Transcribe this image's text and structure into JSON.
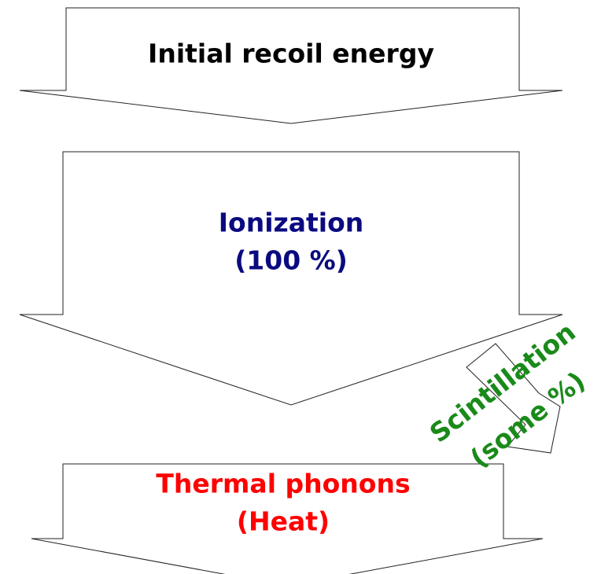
{
  "nodes": [
    {
      "label": "Initial recoil energy"
    },
    {
      "label": "Ionization",
      "sublabel": "(100 %)"
    },
    {
      "label": "Thermal phonons",
      "sublabel": "(Heat)"
    },
    {
      "label": "Scintillation",
      "sublabel": "(some %)"
    }
  ]
}
